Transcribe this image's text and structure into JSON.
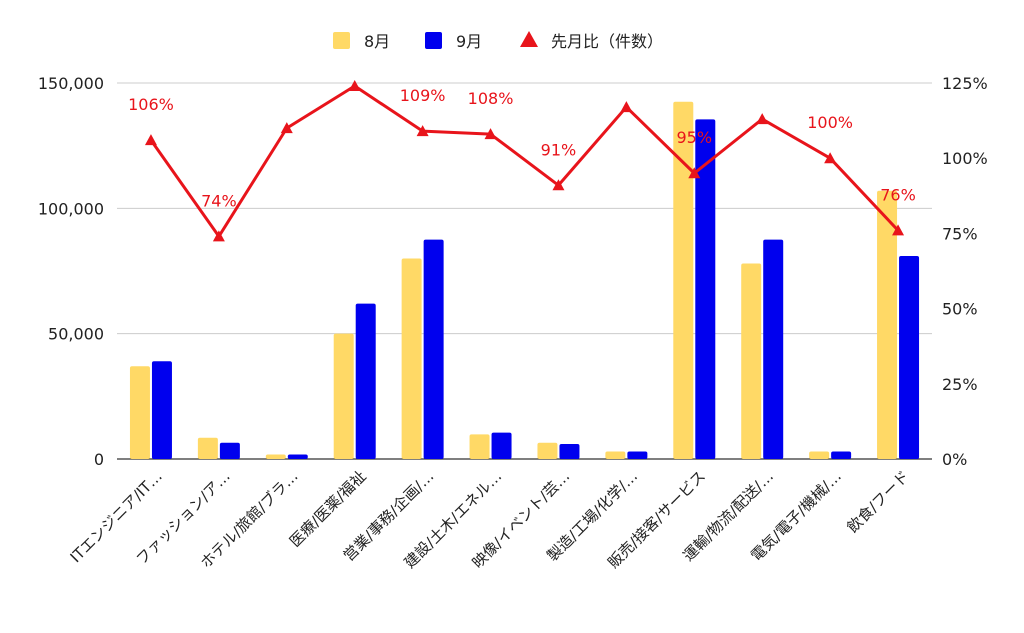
{
  "chart_data": {
    "type": "bar",
    "categories": [
      "ITエンジニア/IT…",
      "ファッション/ア…",
      "ホテル/旅館/ブラ…",
      "医療/医薬/福祉",
      "営業/事務/企画/…",
      "建設/土木/エネル…",
      "映像/イベント/芸…",
      "製造/工場/化学/…",
      "販売/接客/サービス",
      "運輸/物流/配送/…",
      "電気/電子/機械/…",
      "飲食/フード"
    ],
    "series": [
      {
        "name": "8月",
        "type": "bar",
        "axis": "left",
        "color": "#ffd966",
        "values": [
          37000,
          8500,
          1800,
          50000,
          80000,
          9800,
          6500,
          3000,
          142500,
          78000,
          3000,
          107000
        ]
      },
      {
        "name": "9月",
        "type": "bar",
        "axis": "left",
        "color": "#0000ee",
        "values": [
          39000,
          6500,
          1800,
          62000,
          87500,
          10500,
          6000,
          3000,
          135500,
          87500,
          3000,
          81000
        ]
      },
      {
        "name": "先月比（件数）",
        "type": "line",
        "axis": "right",
        "color": "#e8141b",
        "values": [
          106,
          74,
          110,
          124,
          109,
          108,
          91,
          117,
          95,
          113,
          100,
          76
        ]
      }
    ],
    "data_labels": [
      {
        "index": 0,
        "text": "106%"
      },
      {
        "index": 1,
        "text": "74%"
      },
      {
        "index": 4,
        "text": "109%"
      },
      {
        "index": 5,
        "text": "108%"
      },
      {
        "index": 6,
        "text": "91%"
      },
      {
        "index": 8,
        "text": "95%"
      },
      {
        "index": 10,
        "text": "100%"
      },
      {
        "index": 11,
        "text": "76%"
      }
    ],
    "y_left": {
      "min": 0,
      "max": 150000,
      "ticks": [
        0,
        50000,
        100000,
        150000
      ],
      "tick_labels": [
        "0",
        "50,000",
        "100,000",
        "150,000"
      ]
    },
    "y_right": {
      "min": 0,
      "max": 125,
      "ticks": [
        0,
        25,
        50,
        75,
        100,
        125
      ],
      "tick_labels": [
        "0%",
        "25%",
        "50%",
        "75%",
        "100%",
        "125%"
      ]
    },
    "grid": true,
    "legend_position": "top-center",
    "title": "",
    "xlabel": "",
    "ylabel": ""
  }
}
